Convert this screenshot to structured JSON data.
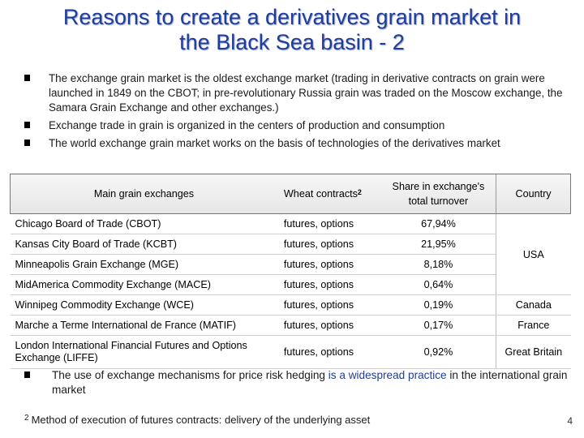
{
  "title": {
    "line1": "Reasons to create a derivatives grain market in",
    "line2": "the Black Sea basin - 2"
  },
  "bullets": [
    "The exchange grain market is the oldest exchange market (trading in derivative contracts on grain were launched in 1849 on the CBOT; in pre-revolutionary Russia grain was traded on the Moscow exchange, the Samara Grain Exchange and other exchanges.)",
    "Exchange trade in grain is organized in the centers of production and consumption",
    "The world exchange grain market works on the basis of technologies of the derivatives market"
  ],
  "table": {
    "headers": {
      "main": "Main grain exchanges",
      "wheat": "Wheat contracts",
      "wheat_sup": "2",
      "share_line1": "Share in exchange's",
      "share_line2": "total turnover",
      "country": "Country"
    },
    "rows": [
      {
        "name": "Chicago Board of Trade (CBOT)",
        "type": "futures, options",
        "share": "67,94%"
      },
      {
        "name": "Kansas City Board of Trade (KCBT)",
        "type": "futures, options",
        "share": "21,95%"
      },
      {
        "name": "Minneapolis Grain Exchange (MGE)",
        "type": "futures, options",
        "share": "8,18%"
      },
      {
        "name": "MidAmerica Commodity Exchange (MACE)",
        "type": "futures, options",
        "share": "0,64%"
      },
      {
        "name": "Winnipeg Commodity Exchange (WCE)",
        "type": "futures, options",
        "share": "0,19%",
        "country": "Canada"
      },
      {
        "name": "Marche a Terme International de France (MATIF)",
        "type": "futures, options",
        "share": "0,17%",
        "country": "France"
      },
      {
        "name": "London International Financial Futures and Options Exchange (LIFFE)",
        "type": "futures, options",
        "share": "0,92%",
        "country": "Great Britain"
      }
    ],
    "usa_label": "USA"
  },
  "bottom_bullet": {
    "part1": "The use of exchange mechanisms for price risk hedging ",
    "part2": "is a widespread practice",
    "part3": " in the international grain market"
  },
  "footnote": {
    "sup": "2",
    "text": "Method of execution of futures contracts: delivery of the underlying asset"
  },
  "page_number": "4"
}
